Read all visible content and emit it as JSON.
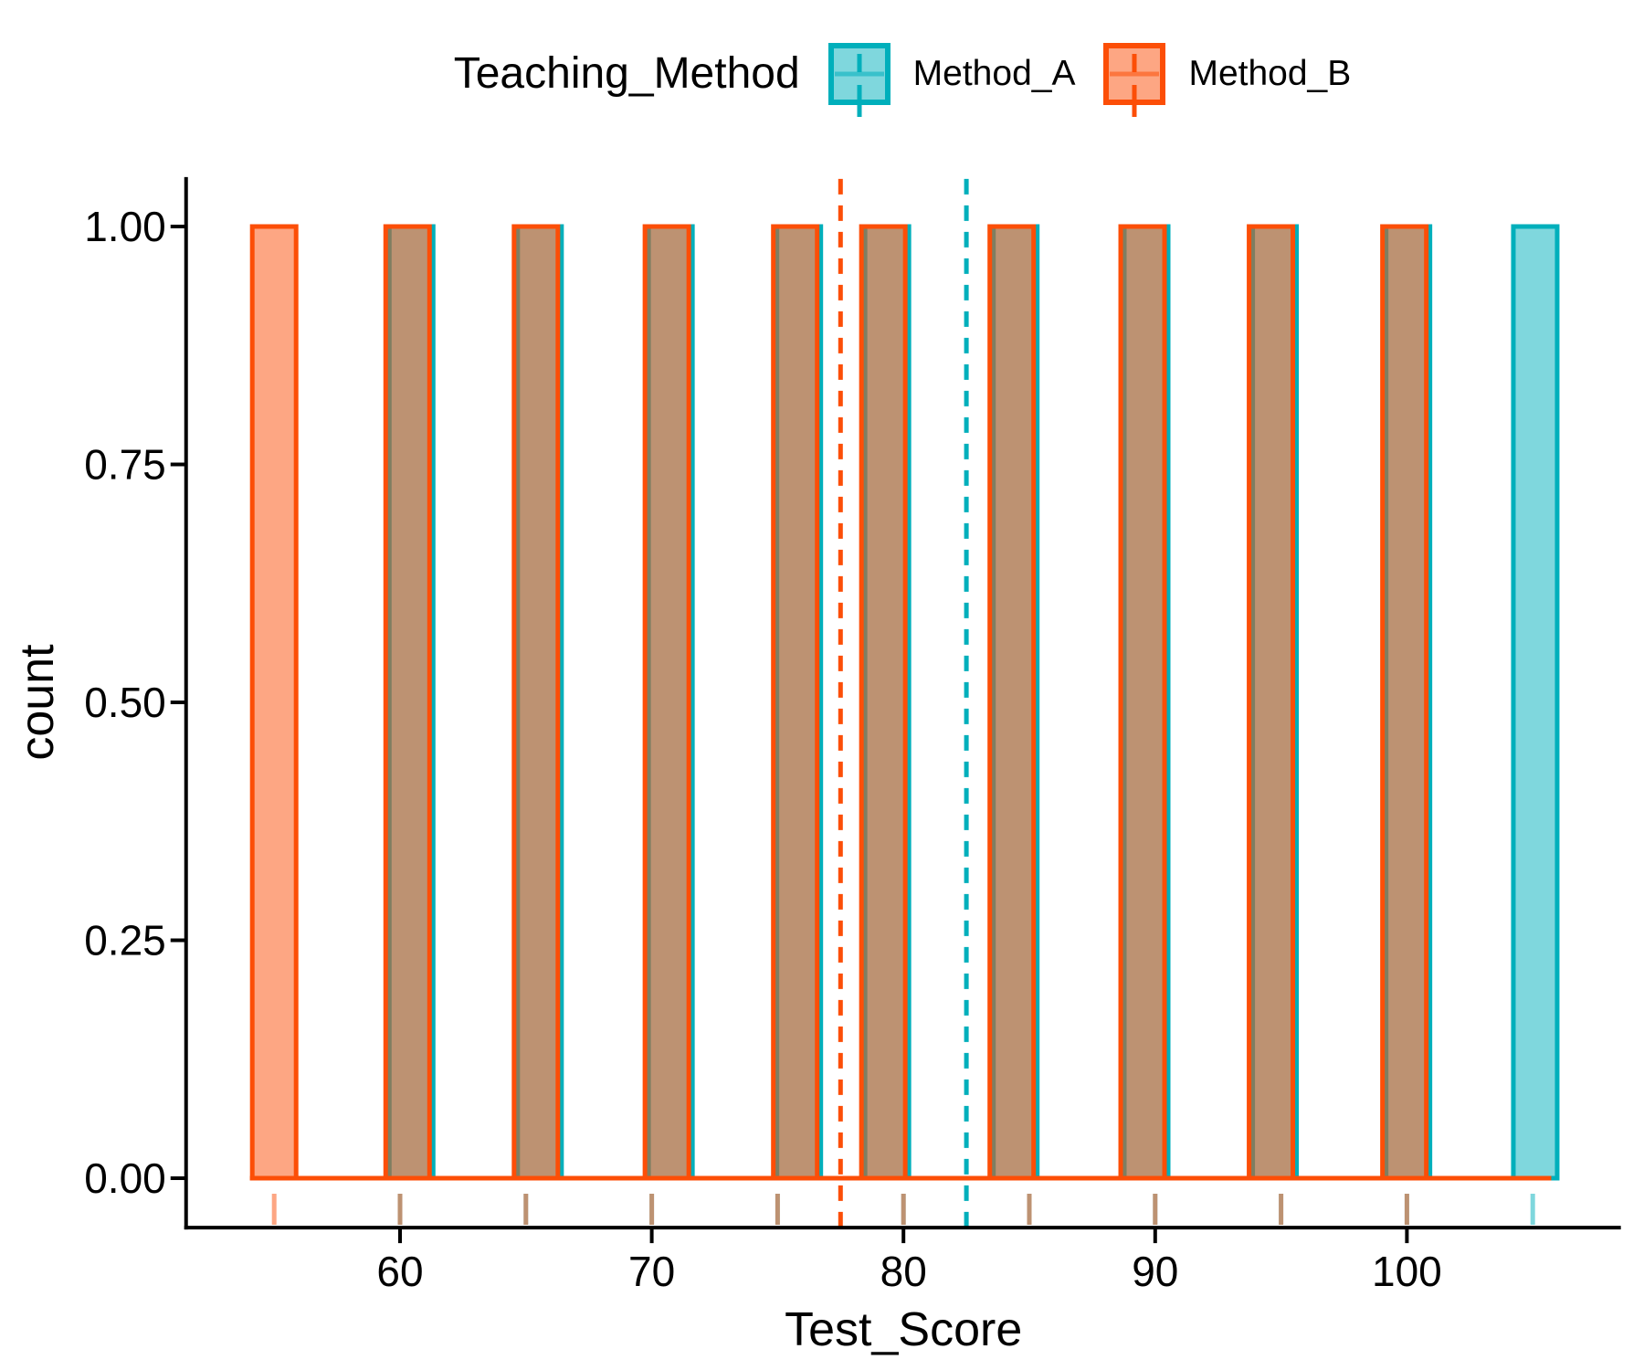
{
  "figure": {
    "background": "#FFFFFF"
  },
  "legend": {
    "title": "Teaching_Method",
    "items": [
      {
        "label": "Method_A",
        "color": "#00AFBB",
        "icon": "legend-key-crossbar-icon"
      },
      {
        "label": "Method_B",
        "color": "#FC4E07",
        "icon": "legend-key-crossbar-icon"
      }
    ]
  },
  "chart_data": {
    "type": "histogram",
    "title": "",
    "xlabel": "Test_Score",
    "ylabel": "count",
    "x_ticks": [
      60,
      70,
      80,
      90,
      100
    ],
    "y_ticks": [
      "0.00",
      "0.25",
      "0.50",
      "0.75",
      "1.00"
    ],
    "xlim": [
      51.5,
      108.5
    ],
    "ylim": [
      -0.05,
      1.05
    ],
    "grid": false,
    "legend_position": "top",
    "fill_alpha": 0.5,
    "series": [
      {
        "name": "Method_A",
        "color": "#00AFBB",
        "values": [
          60,
          65,
          70,
          75,
          80,
          85,
          90,
          95,
          100,
          105
        ],
        "mean": 82.5,
        "mean_line_style": "dashed"
      },
      {
        "name": "Method_B",
        "color": "#FC4E07",
        "values": [
          55,
          60,
          65,
          70,
          75,
          80,
          85,
          90,
          95,
          100
        ],
        "mean": 77.5,
        "mean_line_style": "dashed"
      }
    ],
    "bars": [
      {
        "x": 55.0,
        "count": 1,
        "groups": [
          "Method_B"
        ]
      },
      {
        "x": 60.3,
        "count": 1,
        "groups": [
          "Method_A",
          "Method_B"
        ]
      },
      {
        "x": 65.4,
        "count": 1,
        "groups": [
          "Method_A",
          "Method_B"
        ]
      },
      {
        "x": 70.6,
        "count": 1,
        "groups": [
          "Method_A",
          "Method_B"
        ]
      },
      {
        "x": 75.7,
        "count": 1,
        "groups": [
          "Method_A",
          "Method_B"
        ]
      },
      {
        "x": 79.2,
        "count": 1,
        "groups": [
          "Method_A",
          "Method_B"
        ]
      },
      {
        "x": 84.3,
        "count": 1,
        "groups": [
          "Method_A",
          "Method_B"
        ]
      },
      {
        "x": 89.5,
        "count": 1,
        "groups": [
          "Method_A",
          "Method_B"
        ]
      },
      {
        "x": 94.6,
        "count": 1,
        "groups": [
          "Method_A",
          "Method_B"
        ]
      },
      {
        "x": 99.9,
        "count": 1,
        "groups": [
          "Method_A",
          "Method_B"
        ]
      },
      {
        "x": 105.1,
        "count": 1,
        "groups": [
          "Method_A"
        ]
      }
    ],
    "rug": {
      "Method_A": [
        60,
        65,
        70,
        75,
        80,
        85,
        90,
        95,
        100,
        105
      ],
      "Method_B": [
        55,
        60,
        65,
        70,
        75,
        80,
        85,
        90,
        95,
        100
      ]
    }
  }
}
